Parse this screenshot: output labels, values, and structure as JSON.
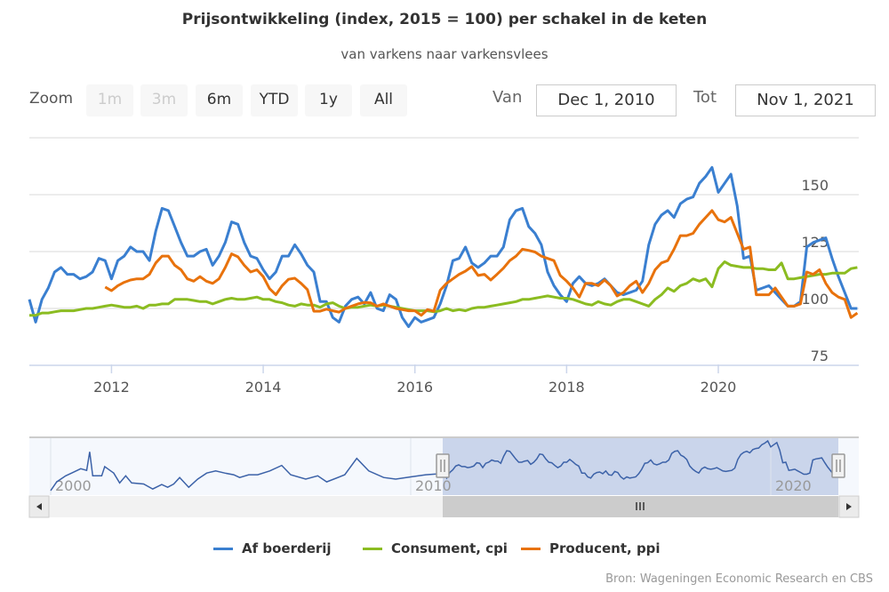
{
  "title": "Prijsontwikkeling (index, 2015 = 100) per schakel in de keten",
  "subtitle": "van varkens naar varkensvlees",
  "range_selector": {
    "zoom_label": "Zoom",
    "buttons": [
      {
        "label": "1m",
        "enabled": false
      },
      {
        "label": "3m",
        "enabled": false
      },
      {
        "label": "6m",
        "enabled": true
      },
      {
        "label": "YTD",
        "enabled": true
      },
      {
        "label": "1y",
        "enabled": true
      },
      {
        "label": "All",
        "enabled": true
      }
    ],
    "from_label": "Van",
    "from_value": "Dec 1, 2010",
    "to_label": "Tot",
    "to_value": "Nov 1, 2021"
  },
  "credit": "Bron: Wageningen Economic Research en CBS",
  "chart_data": {
    "type": "line",
    "title": "Prijsontwikkeling (index, 2015 = 100) per schakel in de keten",
    "subtitle": "van varkens naar varkensvlees",
    "ylim": [
      75,
      175
    ],
    "y_ticks": [
      "75",
      "100",
      "125",
      "150"
    ],
    "x_ticks": [
      "2012",
      "2014",
      "2016",
      "2018",
      "2020"
    ],
    "grid": true,
    "legend": "bottom",
    "x": [
      "2010-12",
      "2011-01",
      "2011-02",
      "2011-03",
      "2011-04",
      "2011-05",
      "2011-06",
      "2011-07",
      "2011-08",
      "2011-09",
      "2011-10",
      "2011-11",
      "2011-12",
      "2012-01",
      "2012-02",
      "2012-03",
      "2012-04",
      "2012-05",
      "2012-06",
      "2012-07",
      "2012-08",
      "2012-09",
      "2012-10",
      "2012-11",
      "2012-12",
      "2013-01",
      "2013-02",
      "2013-03",
      "2013-04",
      "2013-05",
      "2013-06",
      "2013-07",
      "2013-08",
      "2013-09",
      "2013-10",
      "2013-11",
      "2013-12",
      "2014-01",
      "2014-02",
      "2014-03",
      "2014-04",
      "2014-05",
      "2014-06",
      "2014-07",
      "2014-08",
      "2014-09",
      "2014-10",
      "2014-11",
      "2014-12",
      "2015-01",
      "2015-02",
      "2015-03",
      "2015-04",
      "2015-05",
      "2015-06",
      "2015-07",
      "2015-08",
      "2015-09",
      "2015-10",
      "2015-11",
      "2015-12",
      "2016-01",
      "2016-02",
      "2016-03",
      "2016-04",
      "2016-05",
      "2016-06",
      "2016-07",
      "2016-08",
      "2016-09",
      "2016-10",
      "2016-11",
      "2016-12",
      "2017-01",
      "2017-02",
      "2017-03",
      "2017-04",
      "2017-05",
      "2017-06",
      "2017-07",
      "2017-08",
      "2017-09",
      "2017-10",
      "2017-11",
      "2017-12",
      "2018-01",
      "2018-02",
      "2018-03",
      "2018-04",
      "2018-05",
      "2018-06",
      "2018-07",
      "2018-08",
      "2018-09",
      "2018-10",
      "2018-11",
      "2018-12",
      "2019-01",
      "2019-02",
      "2019-03",
      "2019-04",
      "2019-05",
      "2019-06",
      "2019-07",
      "2019-08",
      "2019-09",
      "2019-10",
      "2019-11",
      "2019-12",
      "2020-01",
      "2020-02",
      "2020-03",
      "2020-04",
      "2020-05",
      "2020-06",
      "2020-07",
      "2020-08",
      "2020-09",
      "2020-10",
      "2020-11",
      "2020-12",
      "2021-01",
      "2021-02",
      "2021-03",
      "2021-04",
      "2021-05",
      "2021-06",
      "2021-07",
      "2021-08",
      "2021-09",
      "2021-10",
      "2021-11"
    ],
    "series": [
      {
        "name": "Af boerderij",
        "color": "#3a7fd0",
        "values": [
          104,
          94,
          104,
          109,
          116,
          118,
          115,
          115,
          113,
          114,
          116,
          122,
          121,
          113,
          121,
          123,
          127,
          125,
          125,
          121,
          134,
          144,
          143,
          136,
          129,
          123,
          123,
          125,
          126,
          119,
          123,
          129,
          138,
          137,
          129,
          123,
          122,
          117,
          113,
          116,
          123,
          123,
          128,
          124,
          119,
          116,
          103,
          103,
          96,
          94,
          101,
          104,
          105,
          102,
          107,
          100,
          99,
          106,
          104,
          96,
          92,
          96,
          94,
          95,
          96,
          102,
          110,
          121,
          122,
          127,
          120,
          118,
          120,
          123,
          123,
          127,
          139,
          143,
          144,
          136,
          133,
          128,
          116,
          110,
          106,
          103,
          111,
          114,
          111,
          110,
          111,
          113,
          110,
          107,
          106,
          107,
          108,
          112,
          128,
          137,
          141,
          143,
          140,
          146,
          148,
          149,
          155,
          158,
          162,
          151,
          155,
          159,
          145,
          122,
          123,
          108,
          109,
          110,
          107,
          104,
          101,
          101,
          103,
          127,
          129,
          130,
          131,
          122,
          114,
          107,
          100,
          100
        ]
      },
      {
        "name": "Consument, cpi",
        "color": "#8bbc21",
        "values": [
          97,
          97,
          98,
          98,
          98.5,
          99,
          99,
          99,
          99.5,
          100,
          100,
          100.5,
          101,
          101.5,
          101,
          100.5,
          100.5,
          101,
          100,
          101.5,
          101.5,
          102,
          102,
          104,
          104,
          104,
          103.5,
          103,
          103,
          102,
          103,
          104,
          104.5,
          104,
          104,
          104.5,
          105,
          104,
          104,
          103,
          102.5,
          101.5,
          101,
          102,
          101.5,
          101.5,
          100.5,
          102,
          102.5,
          101,
          100,
          100.5,
          100.5,
          101,
          101.5,
          101,
          101.5,
          101,
          100.5,
          100,
          99.5,
          99,
          99,
          99,
          98.5,
          99,
          100,
          99,
          99.5,
          99,
          100,
          100.5,
          100.5,
          101,
          101.5,
          102,
          102.5,
          103,
          104,
          104,
          104.5,
          105,
          105.5,
          105,
          104.5,
          104.5,
          104,
          103,
          102,
          101.5,
          103,
          102,
          101.5,
          103,
          104,
          104,
          103,
          102,
          101,
          104,
          106,
          109,
          107.5,
          110,
          111,
          113,
          112,
          113,
          109.5,
          117.5,
          120.5,
          119,
          118.5,
          118,
          118,
          117.5,
          117.5,
          117,
          117,
          120,
          113,
          113,
          113.5,
          114,
          114.5,
          115,
          115,
          115.5,
          115.5,
          115.5,
          117.5,
          118
        ]
      },
      {
        "name": "Producent, ppi",
        "color": "#e8720c",
        "values": [
          null,
          null,
          null,
          null,
          null,
          null,
          null,
          null,
          null,
          null,
          null,
          null,
          109.4,
          107.8,
          110,
          111.5,
          112.5,
          113,
          113,
          115,
          120,
          123,
          123,
          119,
          117,
          113,
          112,
          114,
          112,
          111,
          113,
          118,
          124,
          122.7,
          119,
          116,
          117,
          114,
          108.7,
          106,
          110,
          112.8,
          113.3,
          111,
          108.3,
          98.8,
          98.8,
          99.7,
          99,
          98.4,
          100,
          101,
          102,
          102.6,
          102.5,
          101,
          102,
          101,
          100,
          99.5,
          99,
          99,
          97,
          99.5,
          98.8,
          108,
          111,
          113,
          115,
          116.4,
          118.4,
          114.5,
          115,
          112.5,
          115,
          117.7,
          121,
          123,
          126,
          125.5,
          124.8,
          123,
          122,
          121,
          114.5,
          112,
          109,
          105,
          111,
          111,
          110,
          112.5,
          110,
          105.5,
          107,
          110,
          112,
          107,
          111,
          117,
          120,
          121,
          126,
          132,
          132,
          133,
          137,
          140,
          143,
          139,
          138,
          140,
          133,
          126,
          127,
          106,
          106,
          106,
          109,
          105,
          101,
          101,
          102,
          116,
          115,
          117,
          111,
          107,
          105,
          104,
          96,
          98
        ]
      }
    ],
    "navigator": {
      "x_ticks": [
        "2000",
        "2010",
        "2020"
      ],
      "series": "Af boerderij",
      "selected_range": [
        "2010-12",
        "2021-11"
      ],
      "early_points": [
        [
          "2000-01",
          71
        ],
        [
          "2000-03",
          87
        ],
        [
          "2000-06",
          98
        ],
        [
          "2000-08",
          103
        ],
        [
          "2000-11",
          111
        ],
        [
          "2001-01",
          108
        ],
        [
          "2001-02",
          142
        ],
        [
          "2001-03",
          98
        ],
        [
          "2001-06",
          98
        ],
        [
          "2001-07",
          115
        ],
        [
          "2001-10",
          103
        ],
        [
          "2001-12",
          85
        ],
        [
          "2002-02",
          98
        ],
        [
          "2002-04",
          85
        ],
        [
          "2002-08",
          83
        ],
        [
          "2002-11",
          74
        ],
        [
          "2003-02",
          82
        ],
        [
          "2003-04",
          77
        ],
        [
          "2003-06",
          83
        ],
        [
          "2003-08",
          95
        ],
        [
          "2003-11",
          77
        ],
        [
          "2004-02",
          92
        ],
        [
          "2004-05",
          103
        ],
        [
          "2004-08",
          107
        ],
        [
          "2004-11",
          103
        ],
        [
          "2005-02",
          100
        ],
        [
          "2005-04",
          95
        ],
        [
          "2005-07",
          100
        ],
        [
          "2005-10",
          100
        ],
        [
          "2006-02",
          107
        ],
        [
          "2006-06",
          117
        ],
        [
          "2006-09",
          100
        ],
        [
          "2007-02",
          92
        ],
        [
          "2007-06",
          98
        ],
        [
          "2007-09",
          87
        ],
        [
          "2008-03",
          100
        ],
        [
          "2008-07",
          130
        ],
        [
          "2008-11",
          107
        ],
        [
          "2009-04",
          95
        ],
        [
          "2009-08",
          92
        ],
        [
          "2010-01",
          96
        ],
        [
          "2010-06",
          100
        ],
        [
          "2010-11",
          102
        ]
      ]
    }
  }
}
